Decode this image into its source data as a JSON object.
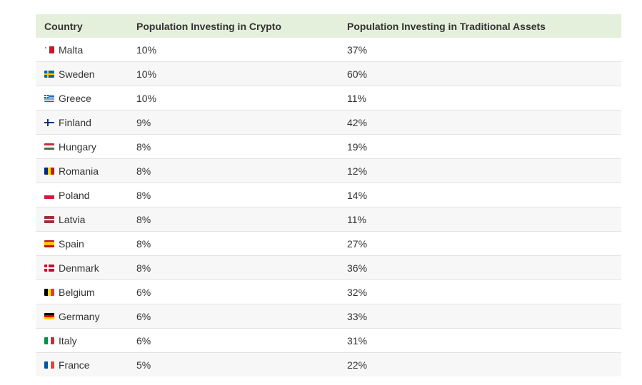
{
  "chart_data": {
    "type": "table",
    "columns": [
      "Country",
      "Population Investing in Crypto",
      "Population Investing in Traditional Assets"
    ],
    "rows": [
      {
        "country": "Malta",
        "flag": "malta-flag",
        "crypto": "10%",
        "traditional": "37%"
      },
      {
        "country": "Sweden",
        "flag": "sweden-flag",
        "crypto": "10%",
        "traditional": "60%"
      },
      {
        "country": "Greece",
        "flag": "greece-flag",
        "crypto": "10%",
        "traditional": "11%"
      },
      {
        "country": "Finland",
        "flag": "finland-flag",
        "crypto": "9%",
        "traditional": "42%"
      },
      {
        "country": "Hungary",
        "flag": "hungary-flag",
        "crypto": "8%",
        "traditional": "19%"
      },
      {
        "country": "Romania",
        "flag": "romania-flag",
        "crypto": "8%",
        "traditional": "12%"
      },
      {
        "country": "Poland",
        "flag": "poland-flag",
        "crypto": "8%",
        "traditional": "14%"
      },
      {
        "country": "Latvia",
        "flag": "latvia-flag",
        "crypto": "8%",
        "traditional": "11%"
      },
      {
        "country": "Spain",
        "flag": "spain-flag",
        "crypto": "8%",
        "traditional": "27%"
      },
      {
        "country": "Denmark",
        "flag": "denmark-flag",
        "crypto": "8%",
        "traditional": "36%"
      },
      {
        "country": "Belgium",
        "flag": "belgium-flag",
        "crypto": "6%",
        "traditional": "32%"
      },
      {
        "country": "Germany",
        "flag": "germany-flag",
        "crypto": "6%",
        "traditional": "33%"
      },
      {
        "country": "Italy",
        "flag": "italy-flag",
        "crypto": "6%",
        "traditional": "31%"
      },
      {
        "country": "France",
        "flag": "france-flag",
        "crypto": "5%",
        "traditional": "22%"
      }
    ]
  },
  "colors": {
    "header_background": "#e5f0dc",
    "row_alt_background": "#f7f7f7",
    "row_border": "#e3e3e3",
    "text": "#333333"
  }
}
